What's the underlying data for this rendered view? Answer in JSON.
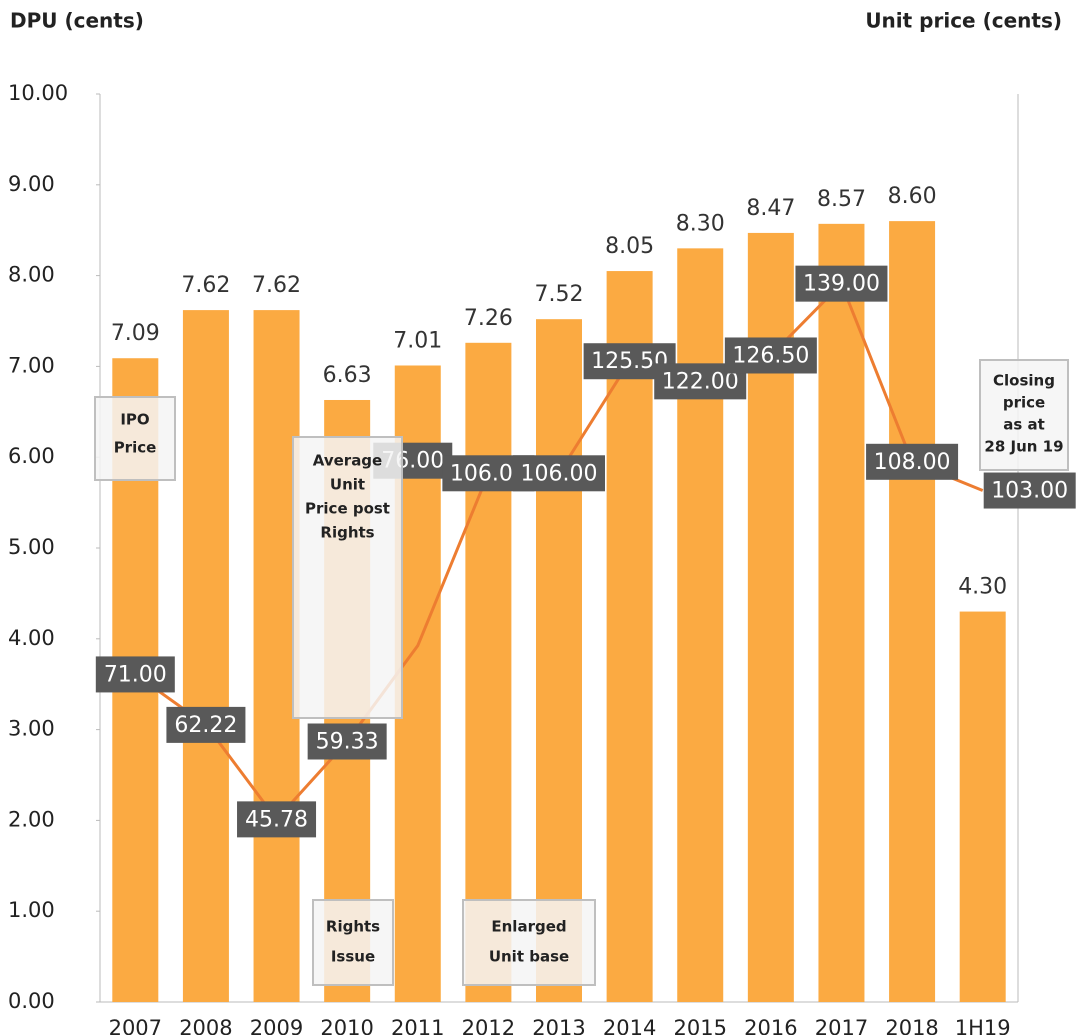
{
  "chart_data": {
    "type": "bar-line",
    "y_label": "DPU (cents)",
    "y2_label": "Unit price (cents)",
    "categories": [
      "2007",
      "2008",
      "2009",
      "2010",
      "2011",
      "2012",
      "2013",
      "2014",
      "2015",
      "2016",
      "2017",
      "2018",
      "1H19"
    ],
    "series": [
      {
        "name": "DPU (cents)",
        "type": "bar",
        "color": "#FBAA42",
        "values": [
          7.09,
          7.62,
          7.62,
          6.63,
          7.01,
          7.26,
          7.52,
          8.05,
          8.3,
          8.47,
          8.57,
          8.6,
          4.3
        ],
        "value_labels": [
          "7.09",
          "7.62",
          "7.62",
          "6.63",
          "7.01",
          "7.26",
          "7.52",
          "8.05",
          "8.30",
          "8.47",
          "8.57",
          "8.60",
          "4.30"
        ]
      },
      {
        "name": "Unit price (cents)",
        "type": "line",
        "axis": "y2",
        "color": "#ED7D31",
        "label_color": "#595959",
        "values": [
          71,
          62.22,
          45.78,
          59.33,
          76,
          106,
          106,
          125.5,
          122,
          126.5,
          139,
          108,
          103
        ],
        "value_labels": [
          "71.00",
          "62.22",
          "45.78",
          "59.33",
          "76.00",
          "106.00",
          "106.00",
          "125.50",
          "122.00",
          "126.50",
          "139.00",
          "108.00",
          "103.00"
        ]
      }
    ],
    "ylim": [
      0,
      10
    ],
    "yticks": [
      {
        "value": 0,
        "label": "0.00"
      },
      {
        "value": 1,
        "label": "1.00"
      },
      {
        "value": 2,
        "label": "2.00"
      },
      {
        "value": 3,
        "label": "3.00"
      },
      {
        "value": 4,
        "label": "4.00"
      },
      {
        "value": 5,
        "label": "5.00"
      },
      {
        "value": 6,
        "label": "6.00"
      },
      {
        "value": 7,
        "label": "7.00"
      },
      {
        "value": 8,
        "label": "8.00"
      },
      {
        "value": 9,
        "label": "9.00"
      },
      {
        "value": 10,
        "label": "10.00"
      }
    ],
    "y2lim": [
      14,
      172
    ],
    "annotations": [
      {
        "lines": [
          "IPO",
          "Price"
        ]
      },
      {
        "lines": [
          "Average",
          "Unit",
          "Price post",
          "Rights"
        ]
      },
      {
        "lines": [
          "Rights",
          "Issue"
        ]
      },
      {
        "lines": [
          "Enlarged",
          "Unit base"
        ]
      },
      {
        "lines": [
          "Closing",
          "price",
          "as at",
          "28 Jun 19"
        ]
      }
    ]
  }
}
